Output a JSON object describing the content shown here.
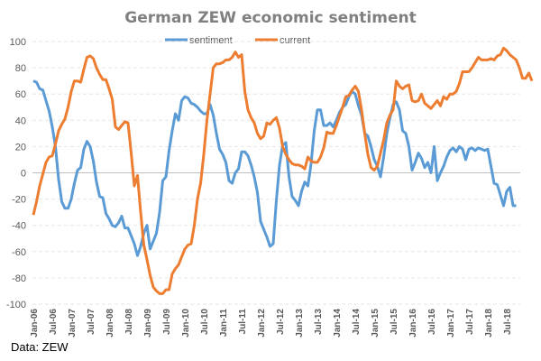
{
  "chart_data": {
    "type": "line",
    "title": "German ZEW economic sentiment",
    "xlabel": "",
    "ylabel": "",
    "ylim": [
      -100,
      100
    ],
    "yticks": [
      100,
      80,
      60,
      40,
      20,
      0,
      -20,
      -40,
      -60,
      -80,
      -100
    ],
    "xtick_labels": [
      "Jan-06",
      "Jul-06",
      "Jan-07",
      "Jul-07",
      "Jan-08",
      "Jul-08",
      "Jan-09",
      "Jul-09",
      "Jan-10",
      "Jul-10",
      "Jan-11",
      "Jul-11",
      "Jan-12",
      "Jul-12",
      "Jan-13",
      "Jul-13",
      "Jan-14",
      "Jul-14",
      "Jan-15",
      "Jul-15",
      "Jan-16",
      "Jul-16",
      "Jan-17",
      "Jul-17",
      "Jan-18",
      "Jul-18"
    ],
    "x_start": "Jan-06",
    "x_frequency": "monthly",
    "grid": "horizontal-dashed",
    "legend": "top-center",
    "series": [
      {
        "name": "sentiment",
        "color": "#5B9BD5",
        "values": [
          70,
          69,
          64,
          63,
          55,
          47,
          35,
          20,
          -5,
          -22,
          -27,
          -27,
          -20,
          -8,
          2,
          4,
          18,
          24,
          20,
          9,
          -7,
          -18,
          -19,
          -31,
          -35,
          -40,
          -41,
          -38,
          -33,
          -42,
          -42,
          -48,
          -54,
          -63,
          -56,
          -46,
          -40,
          -58,
          -52,
          -46,
          -30,
          -6,
          -3,
          17,
          32,
          45,
          40,
          55,
          58,
          57,
          53,
          52,
          50,
          47,
          45,
          45,
          52,
          44,
          30,
          18,
          14,
          8,
          -6,
          -8,
          0,
          3,
          16,
          16,
          13,
          6,
          -3,
          -15,
          -37,
          -43,
          -49,
          -56,
          -54,
          -21,
          6,
          21,
          23,
          -3,
          -18,
          -21,
          -25,
          -14,
          -7,
          -10,
          7,
          32,
          48,
          48,
          36,
          36,
          38,
          35,
          40,
          46,
          50,
          52,
          58,
          62,
          60,
          51,
          44,
          30,
          28,
          20,
          10,
          5,
          -3,
          12,
          30,
          42,
          52,
          54,
          48,
          32,
          30,
          20,
          2,
          8,
          15,
          11,
          4,
          8,
          0,
          20,
          -6,
          0,
          5,
          12,
          17,
          19,
          16,
          20,
          18,
          10,
          18,
          19,
          17,
          19,
          18,
          17,
          18,
          5,
          -8,
          -9,
          -17,
          -25,
          -14,
          -11,
          -25,
          -25
        ]
      },
      {
        "name": "current",
        "color": "#ED7D31",
        "values": [
          -32,
          -22,
          -10,
          -1,
          8,
          12,
          13,
          22,
          32,
          37,
          41,
          50,
          62,
          70,
          70,
          69,
          79,
          88,
          89,
          87,
          80,
          75,
          71,
          71,
          64,
          56,
          35,
          33,
          36,
          39,
          38,
          15,
          -10,
          -2,
          -30,
          -55,
          -66,
          -78,
          -87,
          -90,
          -92,
          -92,
          -89,
          -89,
          -77,
          -73,
          -70,
          -64,
          -58,
          -55,
          -54,
          -40,
          -20,
          -8,
          14,
          40,
          60,
          80,
          83,
          83,
          84,
          86,
          86,
          88,
          92,
          88,
          90,
          62,
          48,
          42,
          38,
          30,
          26,
          28,
          38,
          37,
          40,
          42,
          34,
          20,
          14,
          10,
          7,
          6,
          6,
          5,
          3,
          12,
          9,
          8,
          8,
          12,
          19,
          31,
          30,
          30,
          36,
          43,
          50,
          58,
          59,
          63,
          66,
          62,
          48,
          30,
          14,
          4,
          2,
          5,
          15,
          25,
          38,
          44,
          48,
          70,
          66,
          64,
          66,
          67,
          55,
          54,
          55,
          60,
          53,
          51,
          49,
          52,
          55,
          51,
          58,
          56,
          60,
          60,
          62,
          68,
          77,
          77,
          77,
          80,
          84,
          88,
          86,
          86,
          86,
          87,
          86,
          89,
          90,
          95,
          93,
          90,
          88,
          86,
          80,
          72,
          72,
          76,
          70
        ]
      }
    ]
  },
  "source": "Data: ZEW"
}
